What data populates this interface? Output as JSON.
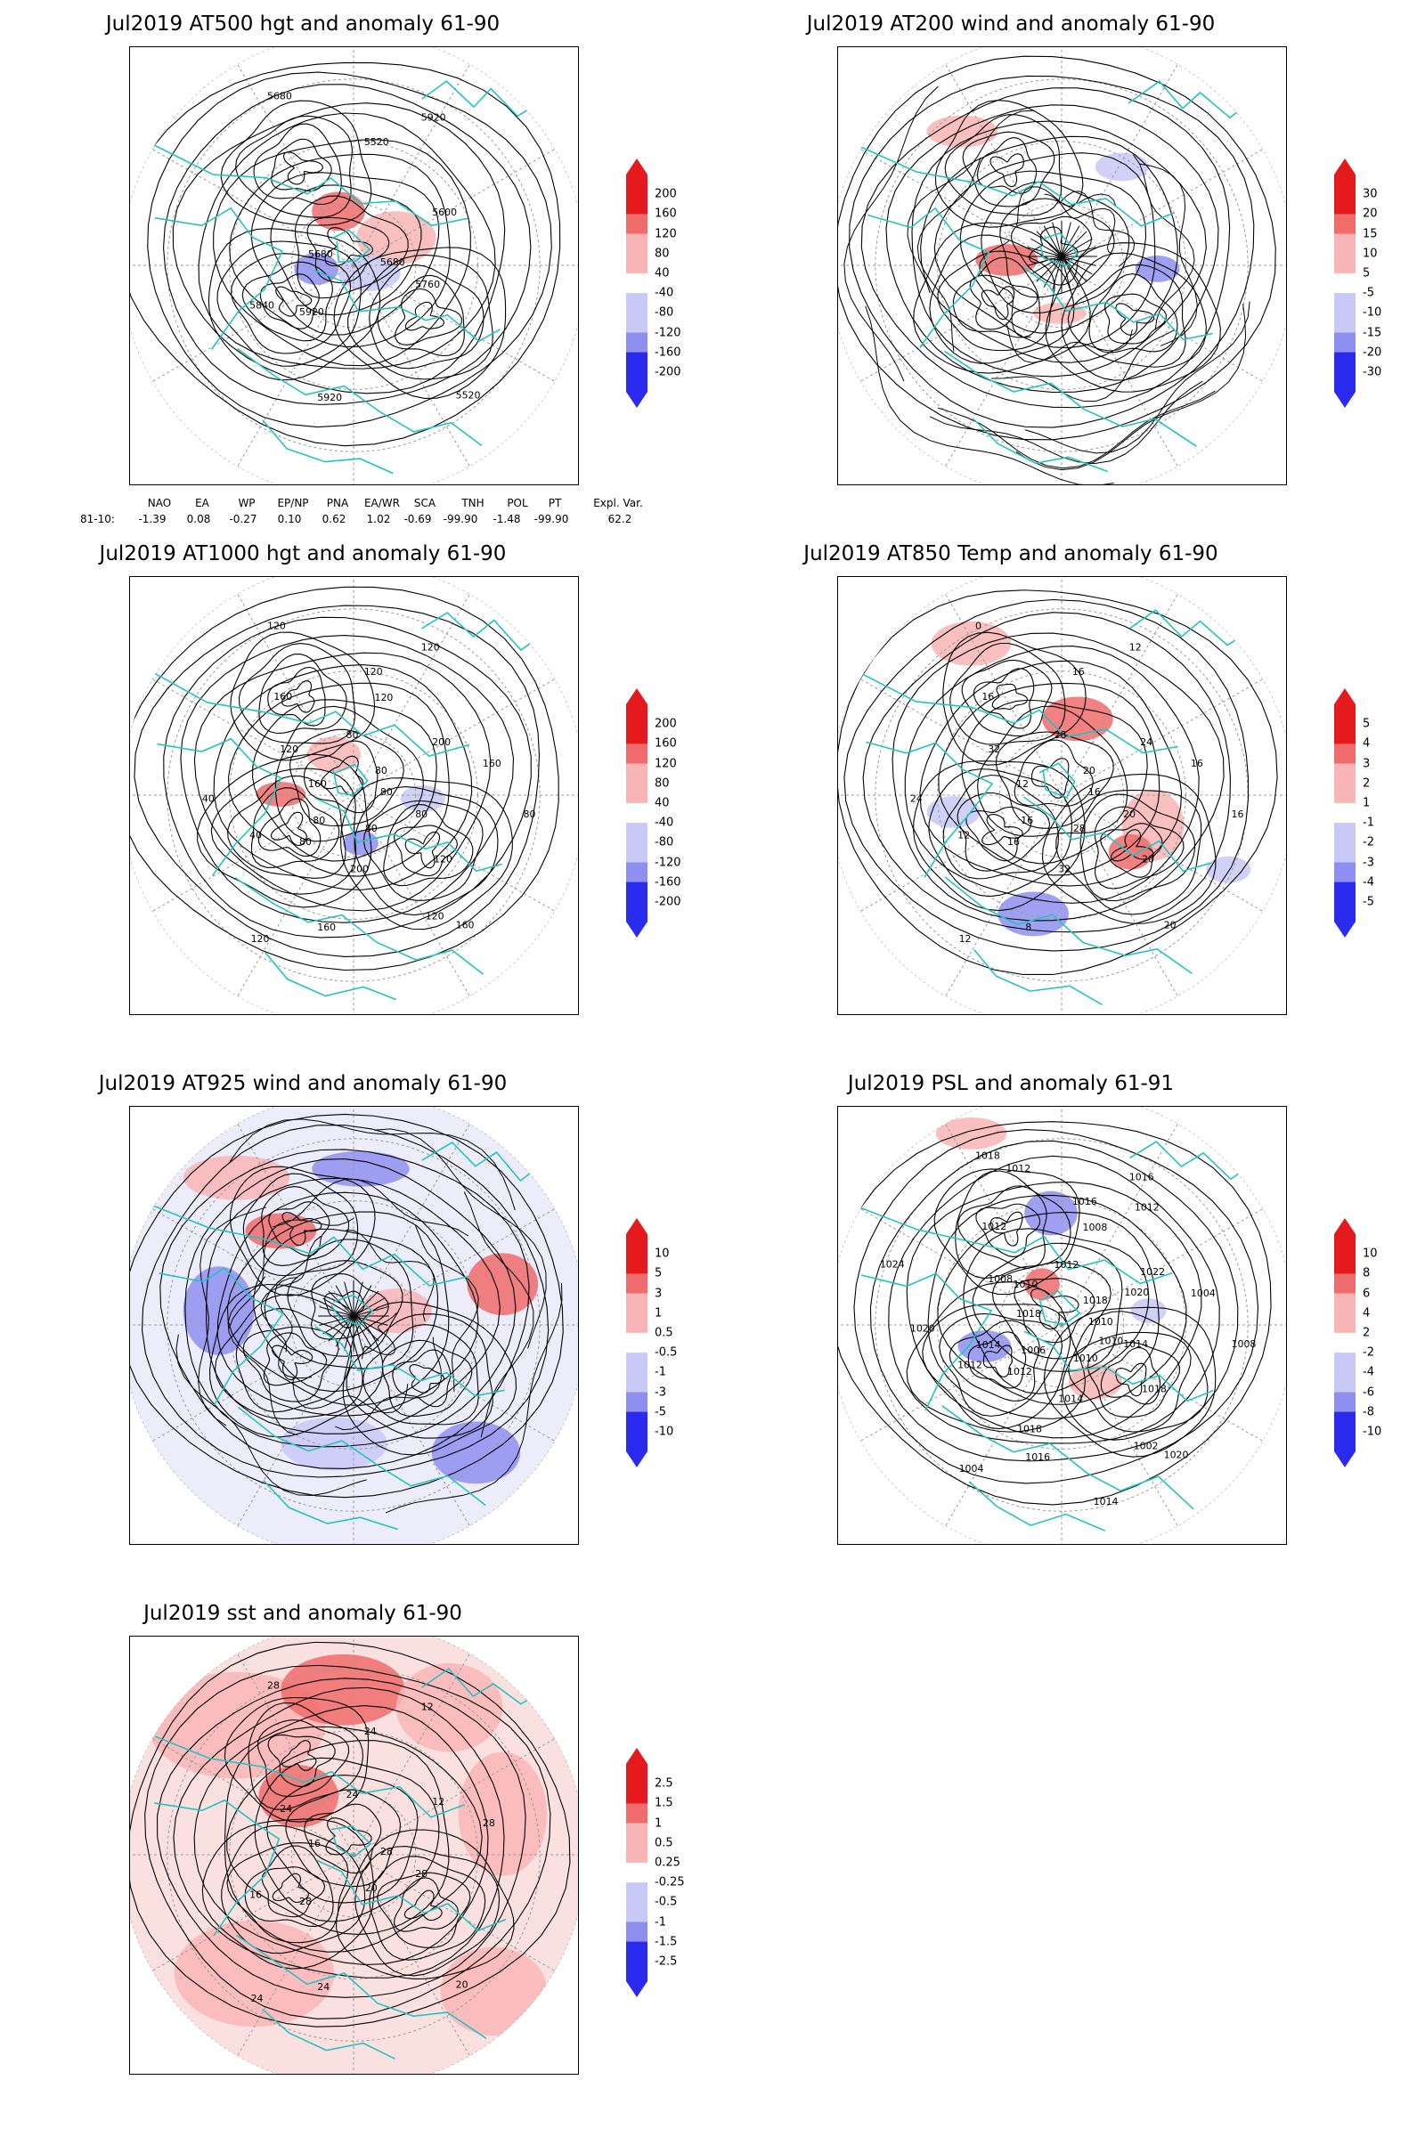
{
  "colors": {
    "coast": "#22c3c3",
    "contour": "#000000",
    "grid": "#9a9a9a",
    "pos_strong": "#e41a1c",
    "pos_mid": "#f06b6b",
    "pos_light": "#f9b5b5",
    "neg_light": "#c9c9f7",
    "neg_mid": "#8f8ff0",
    "neg_strong": "#2b2bf0"
  },
  "panels": [
    {
      "id": "at500",
      "title": "Jul2019 AT500 hgt and anomaly 61-90",
      "colorbar": [
        "200",
        "160",
        "120",
        "80",
        "40",
        "-40",
        "-80",
        "-120",
        "-160",
        "-200"
      ],
      "contour_labels": [
        "5680",
        "5920",
        "5520",
        "5520",
        "5680",
        "5600",
        "5920",
        "5680",
        "5760",
        "5840",
        "5920"
      ]
    },
    {
      "id": "at200",
      "title": "Jul2019 AT200 wind and anomaly 61-90",
      "colorbar": [
        "30",
        "20",
        "15",
        "10",
        "5",
        "-5",
        "-10",
        "-15",
        "-20",
        "-30"
      ],
      "contour_labels": []
    },
    {
      "id": "at1000",
      "title": "Jul2019 AT1000 hgt and anomaly 61-90",
      "colorbar": [
        "200",
        "160",
        "120",
        "80",
        "40",
        "-40",
        "-80",
        "-120",
        "-160",
        "-200"
      ],
      "contour_labels": [
        "80",
        "80",
        "120",
        "160",
        "160",
        "200",
        "160",
        "120",
        "80",
        "40",
        "120",
        "80",
        "120",
        "160",
        "120",
        "80",
        "120",
        "40",
        "80",
        "200",
        "160",
        "80",
        "80",
        "120",
        "120"
      ]
    },
    {
      "id": "at850",
      "title": "Jul2019 AT850 Temp and anomaly 61-90",
      "colorbar": [
        "5",
        "4",
        "3",
        "2",
        "1",
        "-1",
        "-2",
        "-3",
        "-4",
        "-5"
      ],
      "contour_labels": [
        "16",
        "16",
        "16",
        "20",
        "12",
        "24",
        "8",
        "0",
        "20",
        "12",
        "12",
        "28",
        "32",
        "16",
        "12",
        "28",
        "20",
        "24",
        "20",
        "32",
        "16",
        "16",
        "16"
      ]
    },
    {
      "id": "at925",
      "title": "Jul2019 AT925 wind and anomaly 61-90",
      "colorbar": [
        "10",
        "5",
        "3",
        "1",
        "0.5",
        "-0.5",
        "-1",
        "-3",
        "-5",
        "-10"
      ],
      "contour_labels": []
    },
    {
      "id": "psl",
      "title": "Jul2019 PSL and anomaly 61-91",
      "colorbar": [
        "10",
        "8",
        "6",
        "4",
        "2",
        "-2",
        "-4",
        "-6",
        "-8",
        "-10"
      ],
      "contour_labels": [
        "1010",
        "1012",
        "1016",
        "1020",
        "1018",
        "1022",
        "1016",
        "1018",
        "1014",
        "1012",
        "1016",
        "1010",
        "1008",
        "1004",
        "1004",
        "1012",
        "1018",
        "1020",
        "1018",
        "1014",
        "1012",
        "1008",
        "1006",
        "1008",
        "1002",
        "1024",
        "1020",
        "1018",
        "1012",
        "1010",
        "1014",
        "1012",
        "1014",
        "1010"
      ]
    },
    {
      "id": "sst",
      "title": "Jul2019 sst and anomaly 61-90",
      "colorbar": [
        "2.5",
        "1.5",
        "1",
        "0.5",
        "0.25",
        "-0.25",
        "-0.5",
        "-1",
        "-1.5",
        "-2.5"
      ],
      "contour_labels": [
        "28",
        "28",
        "24",
        "20",
        "16",
        "12",
        "24",
        "28",
        "28",
        "16",
        "12",
        "20",
        "24",
        "28",
        "24",
        "24"
      ]
    }
  ],
  "teleconnection": {
    "headers": [
      "NAO",
      "EA",
      "WP",
      "EP/NP",
      "PNA",
      "EA/WR",
      "SCA",
      "TNH",
      "POL",
      "PT",
      "Expl. Var."
    ],
    "row_label": "81-10:",
    "values": [
      "-1.39",
      "0.08",
      "-0.27",
      "0.10",
      "0.62",
      "1.02",
      "-0.69",
      "-99.90",
      "-1.48",
      "-99.90",
      "62.2"
    ]
  }
}
